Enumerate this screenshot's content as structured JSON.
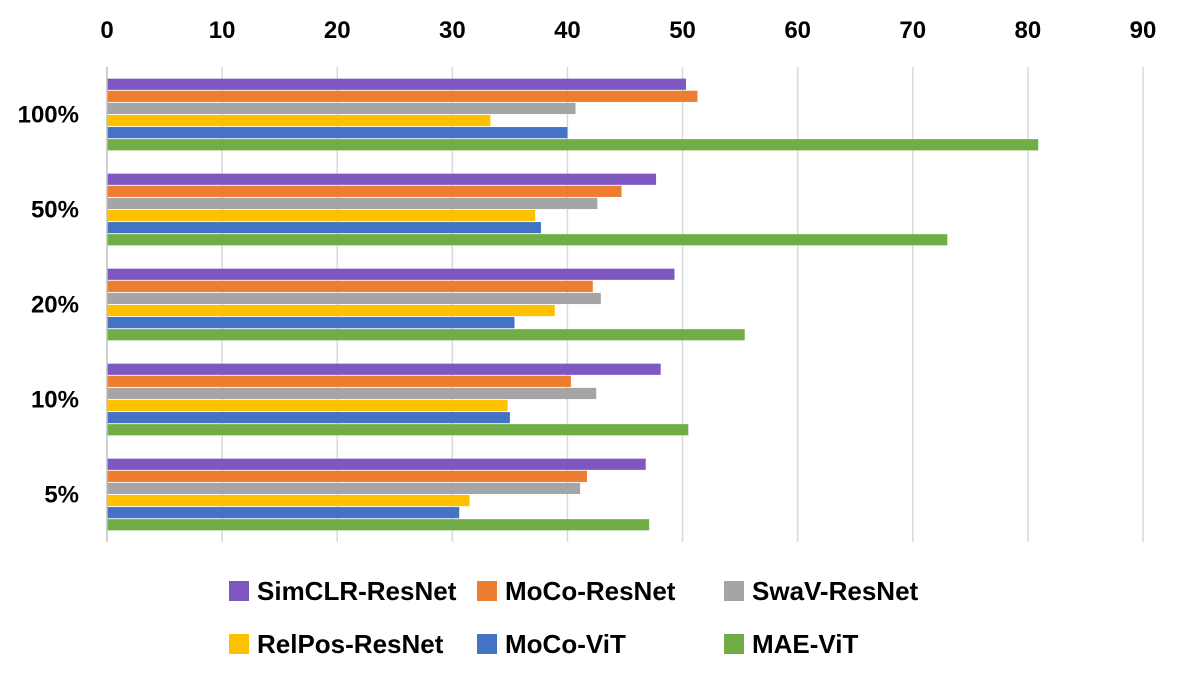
{
  "chart_data": {
    "type": "bar",
    "orientation": "horizontal",
    "categories": [
      "100%",
      "50%",
      "20%",
      "10%",
      "5%"
    ],
    "series": [
      {
        "name": "SimCLR-ResNet",
        "color": "#7E57C2",
        "values": [
          50.3,
          47.7,
          49.3,
          48.1,
          46.8
        ]
      },
      {
        "name": "MoCo-ResNet",
        "color": "#ED7D31",
        "values": [
          51.3,
          44.7,
          42.2,
          40.3,
          41.7
        ]
      },
      {
        "name": "SwaV-ResNet",
        "color": "#A5A5A5",
        "values": [
          40.7,
          42.6,
          42.9,
          42.5,
          41.1
        ]
      },
      {
        "name": "RelPos-ResNet",
        "color": "#FFC000",
        "values": [
          33.3,
          37.2,
          38.9,
          34.8,
          31.5
        ]
      },
      {
        "name": "MoCo-ViT",
        "color": "#4472C4",
        "values": [
          40.0,
          37.7,
          35.4,
          35.0,
          30.6
        ]
      },
      {
        "name": "MAE-ViT",
        "color": "#70AD47",
        "values": [
          80.9,
          73.0,
          55.4,
          50.5,
          47.1
        ]
      }
    ],
    "xticks": [
      "0",
      "10",
      "20",
      "30",
      "40",
      "50",
      "60",
      "70",
      "80",
      "90"
    ],
    "xlim": [
      0,
      90
    ],
    "grid": true,
    "legend_position": "bottom",
    "title": "",
    "xlabel": "",
    "ylabel": ""
  }
}
